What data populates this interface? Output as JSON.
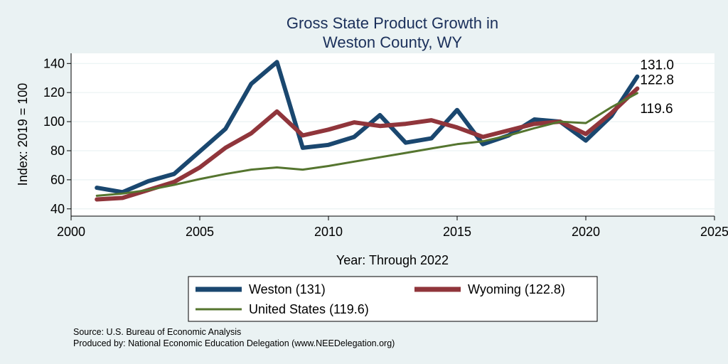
{
  "chart_data": {
    "type": "line",
    "title": "Gross State Product Growth in",
    "subtitle": "Weston County, WY",
    "xlabel": "Year: Through 2022",
    "ylabel": "Index: 2019 = 100",
    "xlim": [
      2000,
      2025
    ],
    "ylim": [
      35,
      147
    ],
    "x_ticks": [
      2000,
      2005,
      2010,
      2015,
      2020,
      2025
    ],
    "y_ticks": [
      40,
      60,
      80,
      100,
      120,
      140
    ],
    "grid": true,
    "legend_position": "bottom",
    "x": [
      2001,
      2002,
      2003,
      2004,
      2005,
      2006,
      2007,
      2008,
      2009,
      2010,
      2011,
      2012,
      2013,
      2014,
      2015,
      2016,
      2017,
      2018,
      2019,
      2020,
      2021,
      2022
    ],
    "series": [
      {
        "name": "Weston (131)",
        "color": "#1a476f",
        "values": [
          54.5,
          51.5,
          59,
          64,
          79.5,
          95,
          126,
          141,
          82,
          84,
          89.5,
          104.5,
          85.5,
          88.5,
          108,
          84.5,
          90.5,
          101.5,
          100,
          87,
          104,
          131
        ],
        "end_label": "131.0"
      },
      {
        "name": "Wyoming (122.8)",
        "color": "#90353b",
        "values": [
          46.5,
          47.5,
          53,
          58.5,
          68.5,
          82,
          92,
          107,
          90.5,
          94.5,
          99.5,
          97,
          98.5,
          101,
          96,
          89.5,
          94,
          98.5,
          100,
          91.5,
          106,
          122.8
        ],
        "end_label": "122.8"
      },
      {
        "name": "United States (119.6)",
        "color": "#55752f",
        "values": [
          49,
          50.5,
          53,
          56.5,
          60.5,
          64,
          67,
          68.5,
          67,
          69.5,
          72.5,
          75.5,
          78.5,
          81.5,
          84.5,
          86.5,
          90.5,
          95.5,
          100,
          99,
          110,
          119.6
        ],
        "end_label": "119.6"
      }
    ]
  },
  "source": "Source: U.S. Bureau of Economic Analysis",
  "produced_by": "Produced by: National Economic Education Delegation (www.NEEDelegation.org)"
}
